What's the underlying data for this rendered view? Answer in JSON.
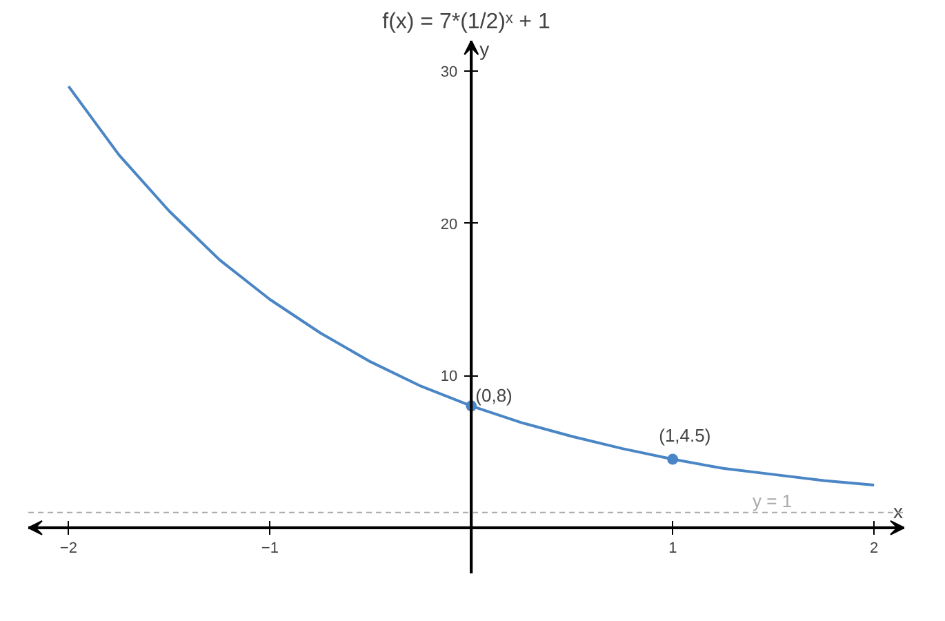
{
  "chart_data": {
    "type": "line",
    "title": "f(x) = 7*(1/2)ˣ + 1",
    "xlabel": "x",
    "ylabel": "y",
    "xlim": [
      -2.2,
      2.15
    ],
    "ylim": [
      -3,
      32
    ],
    "xticks": [
      -2,
      -1,
      1,
      2
    ],
    "yticks": [
      10,
      20,
      30
    ],
    "grid": false,
    "series": [
      {
        "color": "#4a86c5",
        "x": [
          -2,
          -1.75,
          -1.5,
          -1.25,
          -1,
          -0.75,
          -0.5,
          -0.25,
          0,
          0.25,
          0.5,
          0.75,
          1,
          1.25,
          1.5,
          1.75,
          2
        ],
        "values": [
          29,
          24.5,
          20.8,
          17.6,
          15,
          12.8,
          10.9,
          9.3,
          8,
          6.9,
          6,
          5.2,
          4.5,
          3.9,
          3.5,
          3.1,
          2.8
        ]
      },
      {
        "type": "scatter",
        "marker": "circle",
        "color": "#4a86c5",
        "x": [
          0,
          1
        ],
        "values": [
          8,
          4.5
        ]
      }
    ],
    "annotations": [
      {
        "text": "(0,8)",
        "x": 0,
        "y": 8
      },
      {
        "text": "(1,4.5)",
        "x": 1,
        "y": 4.5
      }
    ],
    "ref_lines": [
      {
        "axis": "y",
        "value": 1,
        "label": "y = 1",
        "color": "#aaaaaa",
        "line_style": "dashed"
      }
    ]
  }
}
